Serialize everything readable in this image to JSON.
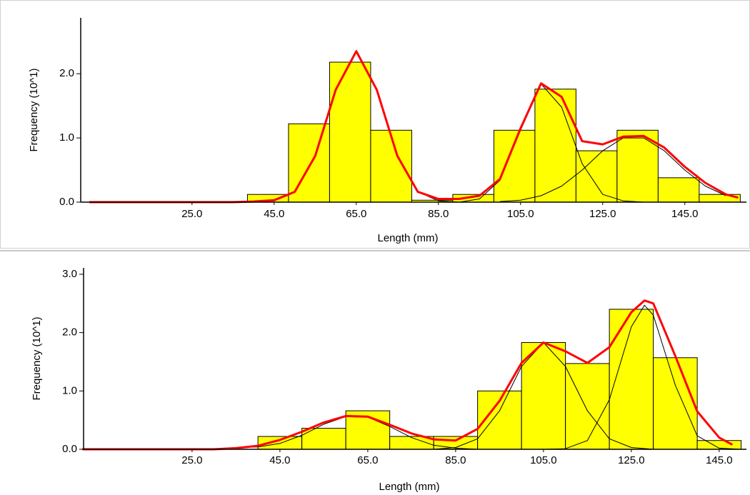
{
  "chart_data": [
    {
      "type": "histogram",
      "xlabel": "Length (mm)",
      "ylabel": "Frequency (10^1)",
      "xlim": [
        -2.1,
        160
      ],
      "ylim": [
        0,
        2.87
      ],
      "xticks": [
        {
          "value": 25,
          "label": "25.0"
        },
        {
          "value": 45,
          "label": "45.0"
        },
        {
          "value": 65,
          "label": "65.0"
        },
        {
          "value": 85,
          "label": "85.0"
        },
        {
          "value": 105,
          "label": "105.0"
        },
        {
          "value": 125,
          "label": "125.0"
        },
        {
          "value": 145,
          "label": "145.0"
        }
      ],
      "yticks": [
        {
          "value": 0,
          "label": "0.0"
        },
        {
          "value": 1,
          "label": "1.0"
        },
        {
          "value": 2,
          "label": "2.0"
        }
      ],
      "bins": [
        38.5,
        48.5,
        58.5,
        68.5,
        78.5,
        88.5,
        98.5,
        108.5,
        118.5,
        128.5,
        138.5,
        148.5,
        158.5
      ],
      "values": [
        0.12,
        1.22,
        2.18,
        1.12,
        0.03,
        0.12,
        1.12,
        1.76,
        0.8,
        1.12,
        0.38,
        0.12
      ],
      "color": "#ffff00",
      "fits": [
        {
          "color": "#000000",
          "x": [
            40,
            45,
            50,
            55,
            60,
            65,
            70,
            75,
            80,
            85,
            90
          ],
          "values": [
            0,
            0.02,
            0.16,
            0.72,
            1.75,
            2.35,
            1.75,
            0.72,
            0.16,
            0.02,
            0
          ]
        },
        {
          "color": "#000000",
          "x": [
            90,
            95,
            100,
            105,
            110,
            115,
            120,
            125,
            130,
            135
          ],
          "values": [
            0,
            0.05,
            0.34,
            1.12,
            1.84,
            1.48,
            0.6,
            0.12,
            0.02,
            0
          ]
        },
        {
          "color": "#000000",
          "x": [
            100,
            105,
            110,
            115,
            120,
            125,
            130,
            135,
            140,
            145,
            150,
            155
          ],
          "values": [
            0.01,
            0.03,
            0.1,
            0.25,
            0.5,
            0.8,
            1.0,
            1.0,
            0.8,
            0.5,
            0.25,
            0.1
          ]
        },
        {
          "color": "#ff0000",
          "x": [
            0,
            35,
            40,
            45,
            50,
            55,
            60,
            65,
            70,
            75,
            80,
            85,
            90,
            95,
            100,
            105,
            110,
            115,
            120,
            125,
            130,
            135,
            140,
            145,
            150,
            155,
            158
          ],
          "values": [
            0,
            0,
            0.01,
            0.03,
            0.16,
            0.72,
            1.75,
            2.35,
            1.75,
            0.72,
            0.16,
            0.05,
            0.05,
            0.1,
            0.36,
            1.15,
            1.85,
            1.64,
            0.95,
            0.9,
            1.02,
            1.03,
            0.85,
            0.55,
            0.3,
            0.12,
            0.07
          ]
        }
      ]
    },
    {
      "type": "histogram",
      "xlabel": "Length (mm)",
      "ylabel": "Frequency (10^1)",
      "xlim": [
        0.3,
        151.2
      ],
      "ylim": [
        0,
        3.11
      ],
      "xticks": [
        {
          "value": 25,
          "label": "25.0"
        },
        {
          "value": 45,
          "label": "45.0"
        },
        {
          "value": 65,
          "label": "65.0"
        },
        {
          "value": 85,
          "label": "85.0"
        },
        {
          "value": 105,
          "label": "105.0"
        },
        {
          "value": 125,
          "label": "125.0"
        },
        {
          "value": 145,
          "label": "145.0"
        }
      ],
      "yticks": [
        {
          "value": 0,
          "label": "0.0"
        },
        {
          "value": 1,
          "label": "1.0"
        },
        {
          "value": 2,
          "label": "2.0"
        },
        {
          "value": 3,
          "label": "3.0"
        }
      ],
      "bins": [
        40,
        50,
        60,
        70,
        80,
        90,
        100,
        110,
        120,
        130,
        140,
        150
      ],
      "values": [
        0.22,
        0.36,
        0.66,
        0.22,
        0.22,
        1.0,
        1.83,
        1.47,
        2.4,
        1.57,
        0.15
      ],
      "color": "#ffff00",
      "fits": [
        {
          "color": "#000000",
          "x": [
            35,
            40,
            45,
            50,
            55,
            60,
            65,
            70,
            75,
            80,
            85,
            90
          ],
          "values": [
            0.03,
            0.04,
            0.1,
            0.24,
            0.43,
            0.56,
            0.55,
            0.39,
            0.2,
            0.07,
            0.02,
            0
          ]
        },
        {
          "color": "#000000",
          "x": [
            80,
            85,
            90,
            95,
            100,
            105,
            110,
            115,
            120,
            125,
            130
          ],
          "values": [
            0,
            0.03,
            0.18,
            0.66,
            1.42,
            1.83,
            1.42,
            0.66,
            0.18,
            0.03,
            0
          ]
        },
        {
          "color": "#000000",
          "x": [
            105,
            110,
            115,
            120,
            125,
            128,
            130,
            135,
            140,
            145,
            150
          ],
          "values": [
            0,
            0.01,
            0.15,
            0.85,
            2.1,
            2.47,
            2.3,
            1.1,
            0.23,
            0.02,
            0
          ]
        },
        {
          "color": "#ff0000",
          "x": [
            0,
            30,
            35,
            40,
            45,
            50,
            55,
            60,
            65,
            70,
            75,
            80,
            85,
            90,
            95,
            100,
            105,
            110,
            115,
            120,
            125,
            128,
            130,
            135,
            140,
            145,
            148
          ],
          "values": [
            0,
            0,
            0.02,
            0.06,
            0.16,
            0.3,
            0.46,
            0.57,
            0.56,
            0.42,
            0.27,
            0.17,
            0.15,
            0.35,
            0.83,
            1.48,
            1.83,
            1.68,
            1.48,
            1.75,
            2.35,
            2.55,
            2.5,
            1.6,
            0.65,
            0.2,
            0.08
          ]
        }
      ]
    }
  ]
}
